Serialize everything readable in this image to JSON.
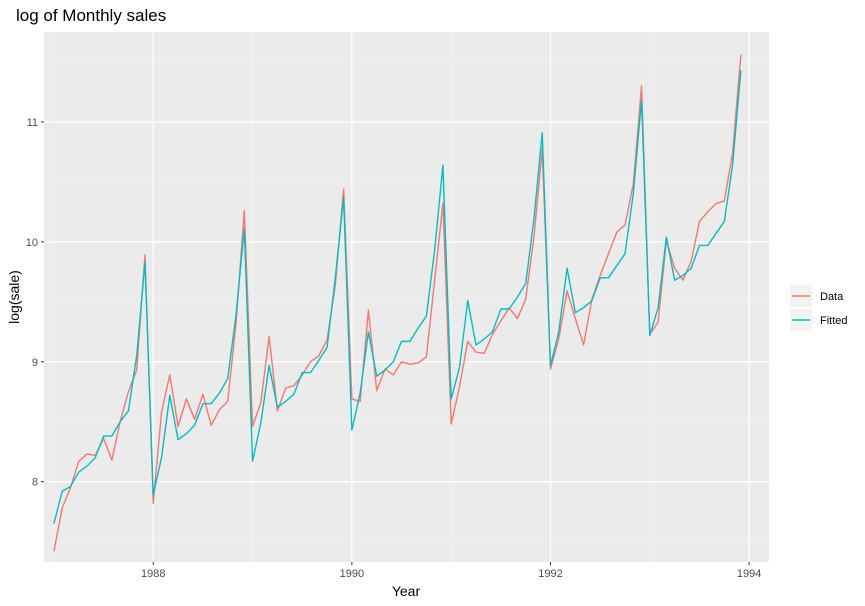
{
  "chart_data": {
    "type": "line",
    "title": "log of Monthly sales",
    "xlabel": "Year",
    "ylabel": "log(sale)",
    "xlim": [
      1986.9,
      1994.2
    ],
    "ylim": [
      7.33,
      11.75
    ],
    "x_ticks": [
      1988,
      1990,
      1992,
      1994
    ],
    "x_tick_labels": [
      "1988",
      "1990",
      "1992",
      "1994"
    ],
    "y_ticks": [
      8,
      9,
      10,
      11
    ],
    "y_tick_labels": [
      "8",
      "9",
      "10",
      "11"
    ],
    "grid": true,
    "legend_position": "right",
    "x_start": 1987.0,
    "x_step": 0.0833333,
    "series": [
      {
        "name": "Data",
        "color": "#F8766D",
        "values": [
          7.42,
          7.78,
          7.95,
          8.17,
          8.23,
          8.22,
          8.36,
          8.18,
          8.5,
          8.75,
          8.93,
          9.89,
          7.82,
          8.58,
          8.89,
          8.46,
          8.69,
          8.52,
          8.73,
          8.47,
          8.6,
          8.67,
          9.32,
          10.26,
          8.46,
          8.66,
          9.21,
          8.59,
          8.78,
          8.8,
          8.89,
          9.0,
          9.05,
          9.18,
          9.64,
          10.44,
          8.69,
          8.67,
          9.43,
          8.76,
          8.94,
          8.89,
          9.0,
          8.98,
          8.99,
          9.04,
          9.68,
          10.32,
          8.48,
          8.79,
          9.17,
          9.08,
          9.07,
          9.23,
          9.34,
          9.45,
          9.36,
          9.52,
          10.04,
          10.77,
          8.94,
          9.19,
          9.59,
          9.36,
          9.14,
          9.52,
          9.72,
          9.9,
          10.08,
          10.14,
          10.48,
          11.3,
          9.23,
          9.33,
          10.01,
          9.78,
          9.68,
          9.84,
          10.17,
          10.25,
          10.32,
          10.34,
          10.74,
          11.56
        ]
      },
      {
        "name": "Fitted",
        "color": "#00BFC4",
        "values": [
          7.65,
          7.92,
          7.96,
          8.08,
          8.13,
          8.2,
          8.38,
          8.38,
          8.5,
          8.59,
          9.05,
          9.83,
          7.89,
          8.2,
          8.72,
          8.35,
          8.4,
          8.47,
          8.65,
          8.65,
          8.74,
          8.86,
          9.39,
          10.11,
          8.17,
          8.49,
          8.97,
          8.62,
          8.67,
          8.73,
          8.91,
          8.91,
          9.01,
          9.12,
          9.7,
          10.37,
          8.43,
          8.74,
          9.25,
          8.88,
          8.93,
          9.0,
          9.17,
          9.17,
          9.28,
          9.38,
          9.93,
          10.64,
          8.69,
          8.95,
          9.51,
          9.14,
          9.19,
          9.25,
          9.44,
          9.44,
          9.54,
          9.65,
          10.19,
          10.91,
          8.97,
          9.25,
          9.78,
          9.41,
          9.45,
          9.51,
          9.7,
          9.7,
          9.8,
          9.9,
          10.4,
          11.18,
          9.22,
          9.45,
          10.04,
          9.68,
          9.72,
          9.78,
          9.97,
          9.97,
          10.07,
          10.17,
          10.64,
          11.43
        ]
      }
    ]
  }
}
